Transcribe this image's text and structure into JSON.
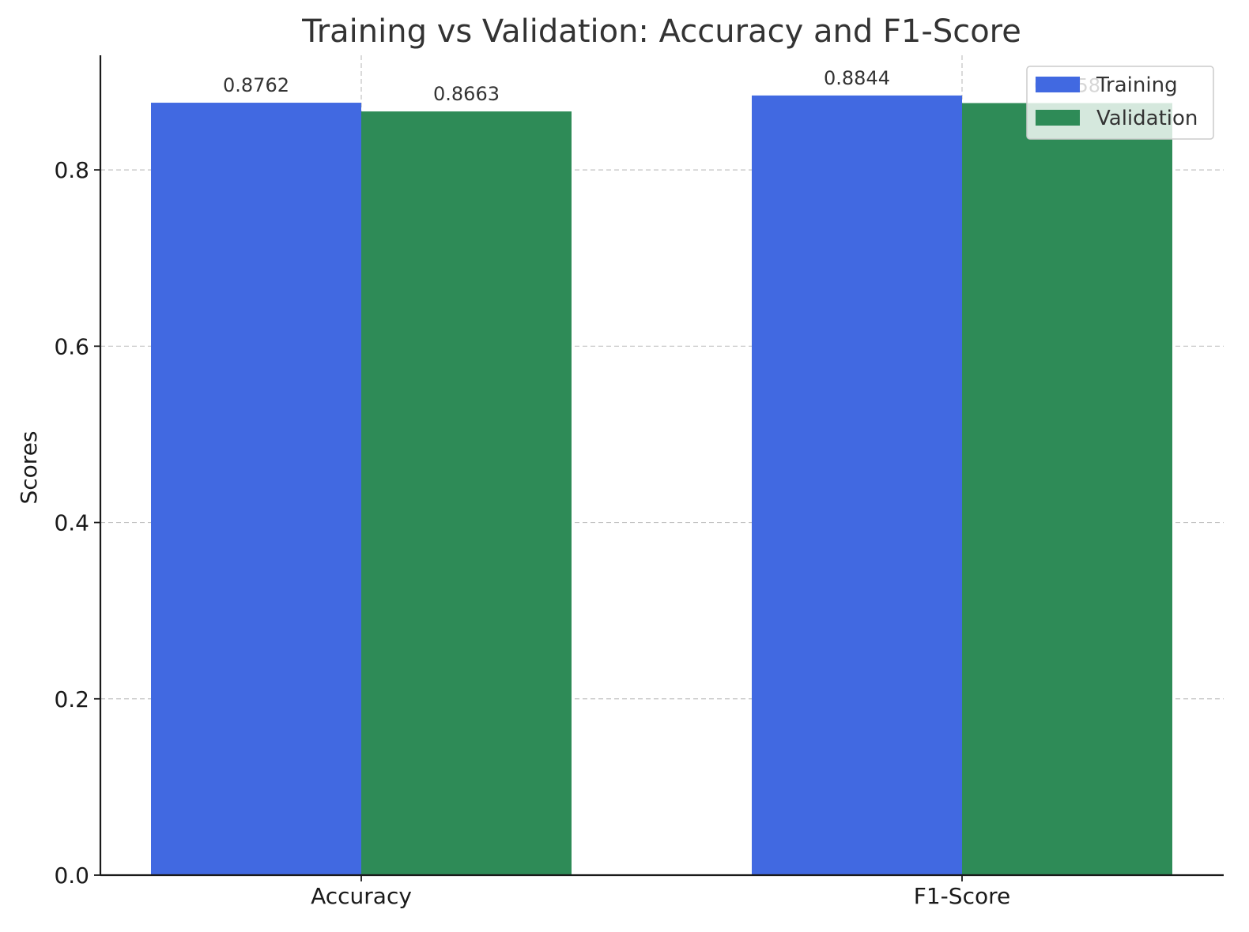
{
  "chart_data": {
    "type": "bar",
    "title": "Training vs Validation: Accuracy and F1-Score",
    "xlabel": "",
    "ylabel": "Scores",
    "categories": [
      "Accuracy",
      "F1-Score"
    ],
    "series": [
      {
        "name": "Training",
        "color": "#4169e1",
        "values": [
          0.8762,
          0.8844
        ],
        "labels": [
          "0.8762",
          "0.8844"
        ]
      },
      {
        "name": "Validation",
        "color": "#2e8b57",
        "values": [
          0.8663,
          0.8758
        ],
        "labels": [
          "0.8663",
          "0.8758"
        ]
      }
    ],
    "ylim": [
      0,
      0.93
    ],
    "yticks": [
      0.0,
      0.2,
      0.4,
      0.6,
      0.8
    ],
    "ytick_labels": [
      "0.0",
      "0.2",
      "0.4",
      "0.6",
      "0.8"
    ],
    "grid": true,
    "legend_position": "top-right"
  }
}
